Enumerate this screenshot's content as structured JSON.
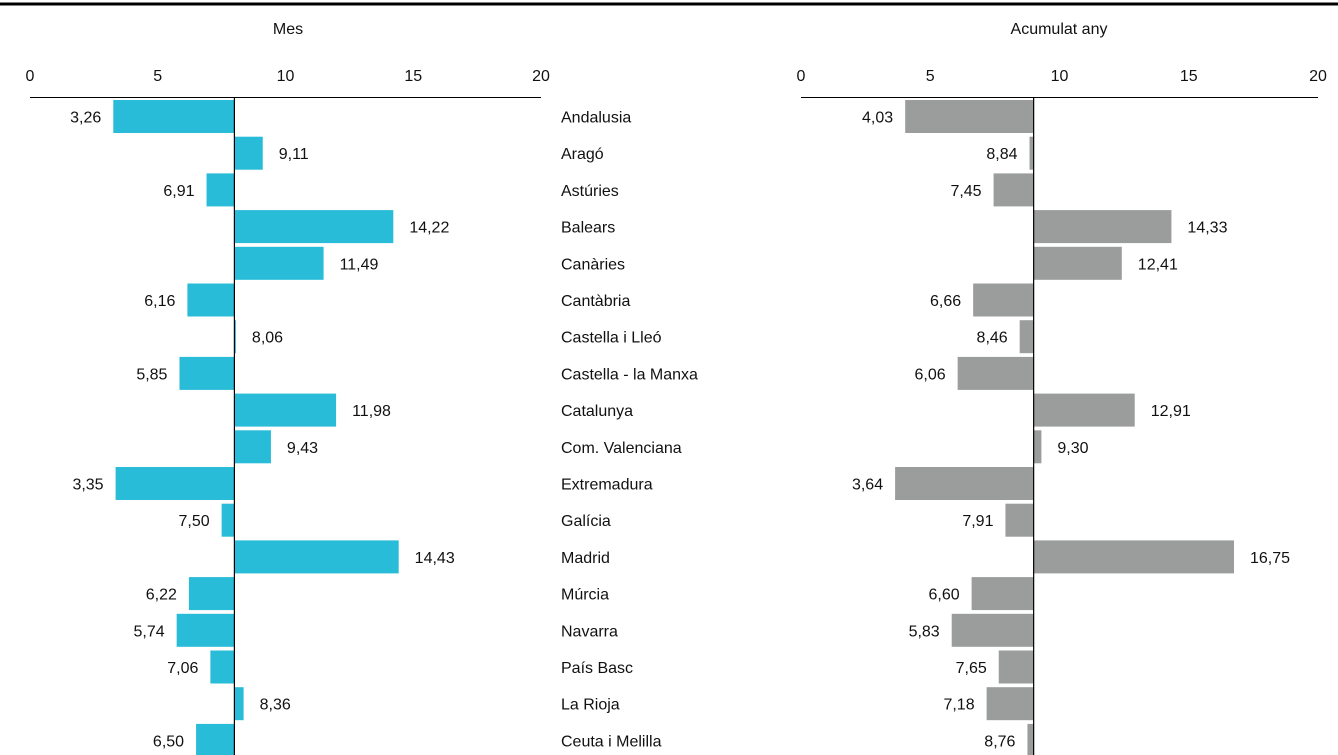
{
  "chart_data": [
    {
      "type": "bar",
      "orientation": "horizontal",
      "title": "Mes",
      "xlim": [
        0,
        20
      ],
      "ticks": [
        0,
        5,
        10,
        15,
        20
      ],
      "baseline": 8,
      "color": "#29BCD8",
      "categories": [
        "Andalusia",
        "Aragó",
        "Astúries",
        "Balears",
        "Canàries",
        "Cantàbria",
        "Castella i Lleó",
        "Castella - la Manxa",
        "Catalunya",
        "Com. Valenciana",
        "Extremadura",
        "Galícia",
        "Madrid",
        "Múrcia",
        "Navarra",
        "País Basc",
        "La Rioja",
        "Ceuta i Melilla"
      ],
      "values": [
        3.26,
        9.11,
        6.91,
        14.22,
        11.49,
        6.16,
        8.06,
        5.85,
        11.98,
        9.43,
        3.35,
        7.5,
        14.43,
        6.22,
        5.74,
        7.06,
        8.36,
        6.5
      ],
      "labels": [
        "3,26",
        "9,11",
        "6,91",
        "14,22",
        "11,49",
        "6,16",
        "8,06",
        "5,85",
        "11,98",
        "9,43",
        "3,35",
        "7,50",
        "14,43",
        "6,22",
        "5,74",
        "7,06",
        "8,36",
        "6,50"
      ]
    },
    {
      "type": "bar",
      "orientation": "horizontal",
      "title": "Acumulat any",
      "xlim": [
        0,
        20
      ],
      "ticks": [
        0,
        5,
        10,
        15,
        20
      ],
      "baseline": 9,
      "color": "#9B9D9D",
      "categories": [
        "Andalusia",
        "Aragó",
        "Astúries",
        "Balears",
        "Canàries",
        "Cantàbria",
        "Castella i Lleó",
        "Castella - la Manxa",
        "Catalunya",
        "Com. Valenciana",
        "Extremadura",
        "Galícia",
        "Madrid",
        "Múrcia",
        "Navarra",
        "País Basc",
        "La Rioja",
        "Ceuta i Melilla"
      ],
      "values": [
        4.03,
        8.84,
        7.45,
        14.33,
        12.41,
        6.66,
        8.46,
        6.06,
        12.91,
        9.3,
        3.64,
        7.91,
        16.75,
        6.6,
        5.83,
        7.65,
        7.18,
        8.76
      ],
      "labels": [
        "4,03",
        "8,84",
        "7,45",
        "14,33",
        "12,41",
        "6,66",
        "8,46",
        "6,06",
        "12,91",
        "9,30",
        "3,64",
        "7,91",
        "16,75",
        "6,60",
        "5,83",
        "7,65",
        "7,18",
        "8,76"
      ]
    }
  ]
}
